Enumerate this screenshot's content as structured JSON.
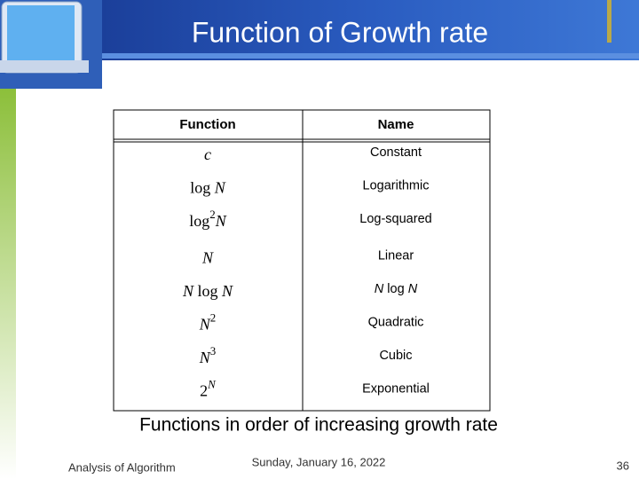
{
  "header": {
    "title": "Function of Growth rate"
  },
  "table": {
    "columns": [
      "Function",
      "Name"
    ],
    "rows": [
      {
        "function": [
          {
            "text": "c",
            "style": "italic"
          }
        ],
        "name": [
          {
            "text": "Constant",
            "style": "roman"
          }
        ]
      },
      {
        "function": [
          {
            "text": "log ",
            "style": "roman"
          },
          {
            "text": "N",
            "style": "italic"
          }
        ],
        "name": [
          {
            "text": "Logarithmic",
            "style": "roman"
          }
        ]
      },
      {
        "function": [
          {
            "text": "log",
            "style": "roman"
          },
          {
            "text": "2",
            "style": "sup"
          },
          {
            "text": "N",
            "style": "italic"
          }
        ],
        "name": [
          {
            "text": "Log-squared",
            "style": "roman"
          }
        ]
      },
      {
        "function": [
          {
            "text": "N",
            "style": "italic"
          }
        ],
        "name": [
          {
            "text": "Linear",
            "style": "roman"
          }
        ]
      },
      {
        "function": [
          {
            "text": "N",
            "style": "italic"
          },
          {
            "text": " log ",
            "style": "roman"
          },
          {
            "text": "N",
            "style": "italic"
          }
        ],
        "name": [
          {
            "text": "N",
            "style": "italic"
          },
          {
            "text": " log ",
            "style": "roman"
          },
          {
            "text": "N",
            "style": "italic"
          }
        ]
      },
      {
        "function": [
          {
            "text": "N",
            "style": "italic"
          },
          {
            "text": "2",
            "style": "sup"
          }
        ],
        "name": [
          {
            "text": "Quadratic",
            "style": "roman"
          }
        ]
      },
      {
        "function": [
          {
            "text": "N",
            "style": "italic"
          },
          {
            "text": "3",
            "style": "sup"
          }
        ],
        "name": [
          {
            "text": "Cubic",
            "style": "roman"
          }
        ]
      },
      {
        "function": [
          {
            "text": "2",
            "style": "roman"
          },
          {
            "text": "N",
            "style": "sup-italic"
          }
        ],
        "name": [
          {
            "text": "Exponential",
            "style": "roman"
          }
        ]
      }
    ],
    "caption": "Functions in order of increasing growth rate"
  },
  "footer": {
    "left": "Analysis of Algorithm",
    "center": "Sunday, January 16, 2022",
    "right": "36"
  }
}
